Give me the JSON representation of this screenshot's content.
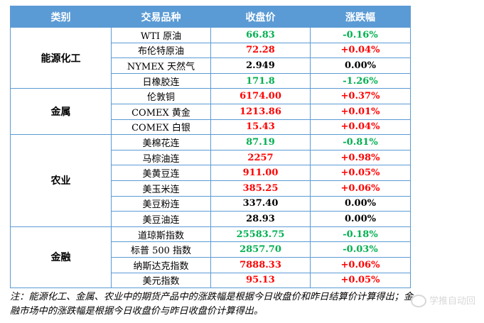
{
  "header": {
    "category": "类别",
    "product": "交易品种",
    "close": "收盘价",
    "change": "涨跌幅"
  },
  "groups": [
    {
      "category": "能源化工",
      "rows": [
        {
          "name": "WTI 原油",
          "close": "66.83",
          "change": "-0.16%",
          "close_color": "green",
          "change_color": "green"
        },
        {
          "name": "布伦特原油",
          "close": "72.28",
          "change": "+0.04%",
          "close_color": "red",
          "change_color": "red"
        },
        {
          "name": "NYMEX 天然气",
          "close": "2.949",
          "change": "0.00%",
          "close_color": "black",
          "change_color": "black"
        },
        {
          "name": "日橡胶连",
          "close": "171.8",
          "change": "-1.26%",
          "close_color": "green",
          "change_color": "green"
        }
      ]
    },
    {
      "category": "金属",
      "rows": [
        {
          "name": "伦敦铜",
          "close": "6174.00",
          "change": "+0.37%",
          "close_color": "red",
          "change_color": "red"
        },
        {
          "name": "COMEX 黄金",
          "close": "1213.86",
          "change": "+0.01%",
          "close_color": "red",
          "change_color": "red"
        },
        {
          "name": "COMEX 白银",
          "close": "15.43",
          "change": "+0.04%",
          "close_color": "red",
          "change_color": "red"
        }
      ]
    },
    {
      "category": "农业",
      "rows": [
        {
          "name": "美棉花连",
          "close": "87.19",
          "change": "-0.81%",
          "close_color": "green",
          "change_color": "green"
        },
        {
          "name": "马棕油连",
          "close": "2257",
          "change": "+0.98%",
          "close_color": "red",
          "change_color": "red"
        },
        {
          "name": "美黄豆连",
          "close": "911.00",
          "change": "+0.05%",
          "close_color": "red",
          "change_color": "red"
        },
        {
          "name": "美玉米连",
          "close": "385.25",
          "change": "+0.06%",
          "close_color": "red",
          "change_color": "red"
        },
        {
          "name": "美豆粉连",
          "close": "337.40",
          "change": "0.00%",
          "close_color": "black",
          "change_color": "black"
        },
        {
          "name": "美豆油连",
          "close": "28.93",
          "change": "0.00%",
          "close_color": "black",
          "change_color": "black"
        }
      ]
    },
    {
      "category": "金融",
      "rows": [
        {
          "name": "道琼斯指数",
          "close": "25583.75",
          "change": "-0.18%",
          "close_color": "green",
          "change_color": "green"
        },
        {
          "name": "标普 500 指数",
          "close": "2857.70",
          "change": "-0.03%",
          "close_color": "green",
          "change_color": "green"
        },
        {
          "name": "纳斯达克指数",
          "close": "7888.33",
          "change": "+0.06%",
          "close_color": "red",
          "change_color": "red"
        },
        {
          "name": "美元指数",
          "close": "95.13",
          "change": "+0.05%",
          "close_color": "red",
          "change_color": "red"
        }
      ]
    }
  ],
  "note": "注：能源化工、金属、农业中的期货产品中的涨跌幅是根据今日收盘价和昨日结算价计算得出；金融市场中的涨跌幅是根据今日收盘价与昨日收盘价计算得出。",
  "watermark": "学推自动回",
  "colors": {
    "header_bg": "#5b9bd5",
    "up": "#ff0000",
    "down": "#00b050",
    "flat": "#000000"
  }
}
